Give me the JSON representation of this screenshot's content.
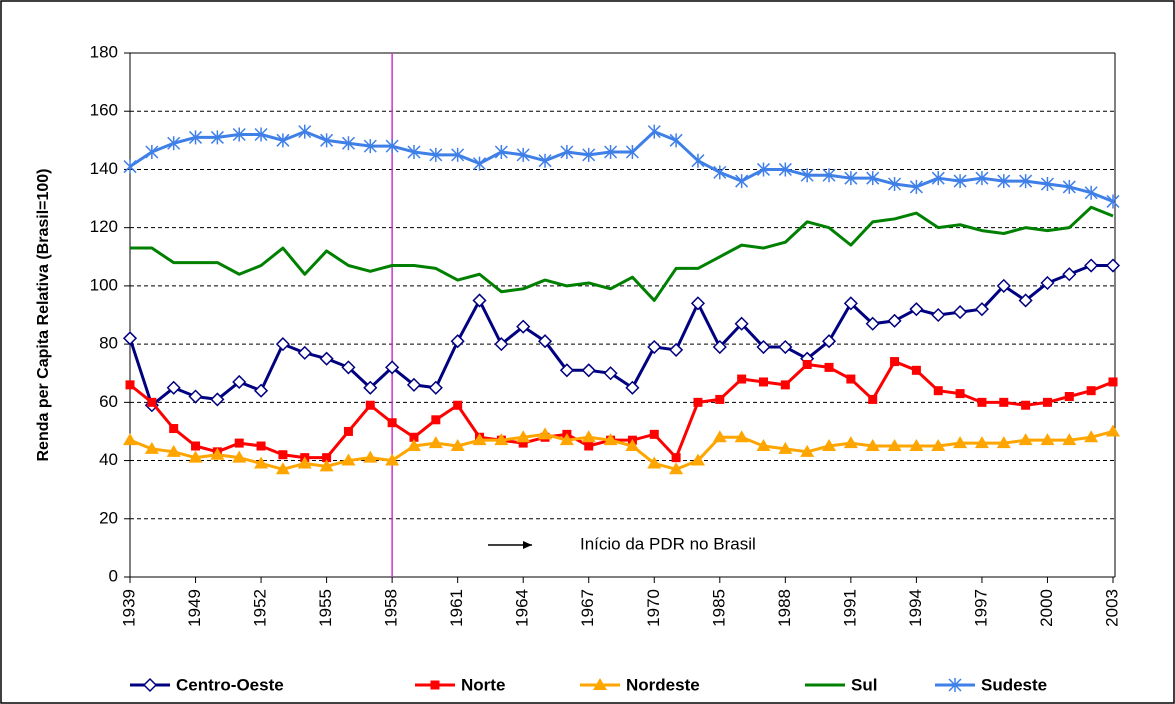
{
  "chart_data": {
    "type": "line",
    "y_label": "Renda per Capita Relativa (Brasil=100)",
    "categories": [
      "1939",
      null,
      null,
      "1949",
      null,
      null,
      "1952",
      null,
      null,
      "1955",
      null,
      null,
      "1958",
      null,
      null,
      "1961",
      null,
      null,
      "1964",
      null,
      null,
      "1967",
      null,
      null,
      "1970",
      null,
      null,
      "1985",
      null,
      null,
      "1988",
      null,
      null,
      "1991",
      null,
      null,
      "1994",
      null,
      null,
      "1997",
      null,
      null,
      "2000",
      null,
      null,
      "2003"
    ],
    "series": [
      {
        "name": "Centro-Oeste",
        "color": "#000080",
        "marker": "diamond",
        "values": [
          82,
          59,
          65,
          62,
          61,
          67,
          64,
          80,
          77,
          75,
          72,
          65,
          72,
          66,
          65,
          81,
          95,
          80,
          86,
          81,
          71,
          71,
          70,
          65,
          79,
          78,
          94,
          79,
          87,
          79,
          79,
          75,
          81,
          94,
          87,
          88,
          92,
          90,
          91,
          92,
          100,
          95,
          101,
          104,
          107,
          107
        ]
      },
      {
        "name": "Norte",
        "color": "#ff0000",
        "marker": "square",
        "values": [
          66,
          60,
          51,
          45,
          43,
          46,
          45,
          42,
          41,
          41,
          50,
          59,
          53,
          48,
          54,
          59,
          48,
          47,
          46,
          48,
          49,
          45,
          47,
          47,
          49,
          41,
          60,
          61,
          68,
          67,
          66,
          73,
          72,
          68,
          61,
          74,
          71,
          64,
          63,
          60,
          60,
          59,
          60,
          62,
          64,
          67
        ]
      },
      {
        "name": "Nordeste",
        "color": "#ffa500",
        "marker": "triangle",
        "values": [
          47,
          44,
          43,
          41,
          42,
          41,
          39,
          37,
          39,
          38,
          40,
          41,
          40,
          45,
          46,
          45,
          47,
          47,
          48,
          49,
          47,
          48,
          47,
          45,
          39,
          37,
          40,
          48,
          48,
          45,
          44,
          43,
          45,
          46,
          45,
          45,
          45,
          45,
          46,
          46,
          46,
          47,
          47,
          47,
          48,
          50
        ]
      },
      {
        "name": "Sul",
        "color": "#008000",
        "marker": "none",
        "values": [
          113,
          113,
          108,
          108,
          108,
          104,
          107,
          113,
          104,
          112,
          107,
          105,
          107,
          107,
          106,
          102,
          104,
          98,
          99,
          102,
          100,
          101,
          99,
          103,
          95,
          106,
          106,
          110,
          114,
          113,
          115,
          122,
          120,
          114,
          122,
          123,
          125,
          120,
          121,
          119,
          118,
          120,
          119,
          120,
          127,
          124
        ]
      },
      {
        "name": "Sudeste",
        "color": "#3f7fe8",
        "marker": "asterisk",
        "values": [
          141,
          146,
          149,
          151,
          151,
          152,
          152,
          150,
          153,
          150,
          149,
          148,
          148,
          146,
          145,
          145,
          142,
          146,
          145,
          143,
          146,
          145,
          146,
          146,
          153,
          150,
          143,
          139,
          136,
          140,
          140,
          138,
          138,
          137,
          137,
          135,
          134,
          137,
          136,
          137,
          136,
          136,
          135,
          134,
          132,
          129
        ]
      }
    ],
    "ylim": [
      0,
      180
    ],
    "yticks": [
      0,
      20,
      40,
      60,
      80,
      100,
      120,
      140,
      160,
      180
    ],
    "grid": true,
    "vline_at": "1958",
    "vline_color": "#cc33cc",
    "annotation": "Início da PDR no Brasil",
    "legend": "bottom"
  }
}
